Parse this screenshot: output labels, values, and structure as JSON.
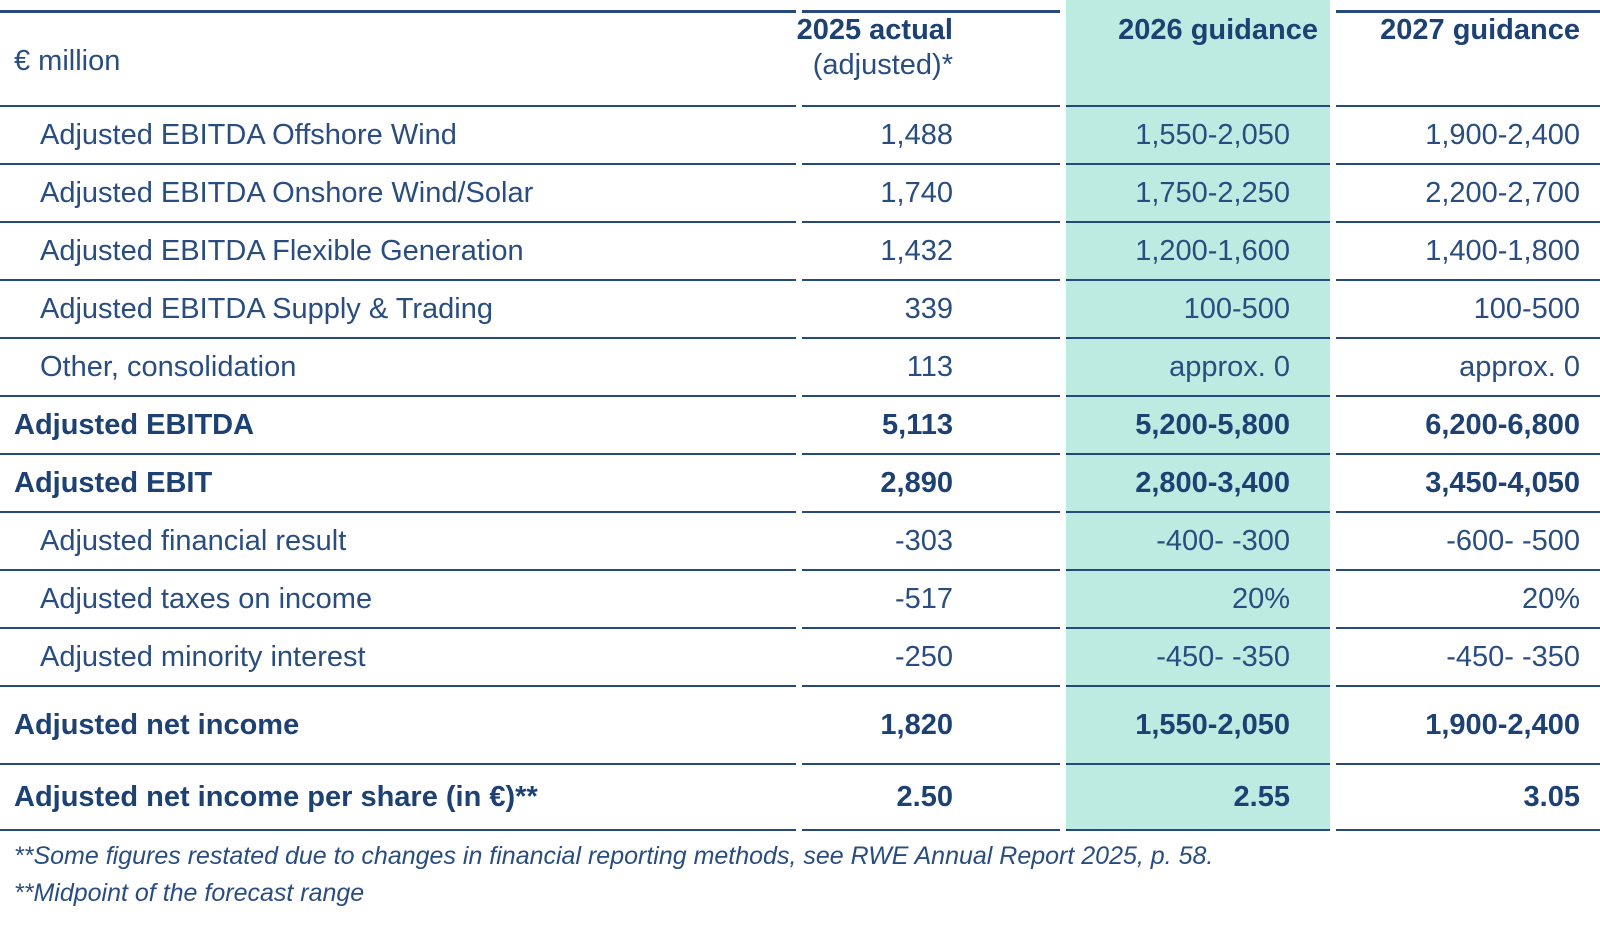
{
  "table": {
    "unit_label": "€ million",
    "col_headers": {
      "actual": {
        "line1": "2025 actual",
        "line2": "(adjusted)*"
      },
      "guidance_2026": "2026 guidance",
      "guidance_2027": "2027 guidance"
    },
    "rows": [
      {
        "label": "Adjusted EBITDA Offshore Wind",
        "bold": false,
        "values": [
          "1,488",
          "1,550-2,050",
          "1,900-2,400"
        ]
      },
      {
        "label": "Adjusted EBITDA Onshore Wind/Solar",
        "bold": false,
        "values": [
          "1,740",
          "1,750-2,250",
          "2,200-2,700"
        ]
      },
      {
        "label": "Adjusted EBITDA Flexible Generation",
        "bold": false,
        "values": [
          "1,432",
          "1,200-1,600",
          "1,400-1,800"
        ]
      },
      {
        "label": "Adjusted EBITDA Supply & Trading",
        "bold": false,
        "values": [
          "339",
          "100-500",
          "100-500"
        ]
      },
      {
        "label": "Other, consolidation",
        "bold": false,
        "values": [
          "113",
          "approx. 0",
          "approx. 0"
        ]
      },
      {
        "label": "Adjusted EBITDA",
        "bold": true,
        "values": [
          "5,113",
          "5,200-5,800",
          "6,200-6,800"
        ]
      },
      {
        "label": "Adjusted EBIT",
        "bold": true,
        "values": [
          "2,890",
          "2,800-3,400",
          "3,450-4,050"
        ]
      },
      {
        "label": "Adjusted financial result",
        "bold": false,
        "values": [
          "-303",
          "-400- -300",
          "-600- -500"
        ]
      },
      {
        "label": "Adjusted taxes on income",
        "bold": false,
        "values": [
          "-517",
          "20%",
          "20%"
        ]
      },
      {
        "label": "Adjusted minority interest",
        "bold": false,
        "values": [
          "-250",
          "-450- -350",
          "-450- -350"
        ]
      },
      {
        "label": "Adjusted net income",
        "bold": true,
        "values": [
          "1,820",
          "1,550-2,050",
          "1,900-2,400"
        ]
      },
      {
        "label": "Adjusted net income per share (in €)**",
        "bold": true,
        "values": [
          "2.50",
          "2.55",
          "3.05"
        ]
      }
    ],
    "footnotes": [
      "**Some figures restated due to changes in financial reporting methods, see RWE Annual Report 2025, p. 58.",
      "**Midpoint of the forecast range"
    ],
    "colors": {
      "text_navy": "#2A4D80",
      "bold_navy": "#1D4173",
      "border_navy": "#26497E",
      "highlight_teal": "#BCEBE1"
    }
  }
}
